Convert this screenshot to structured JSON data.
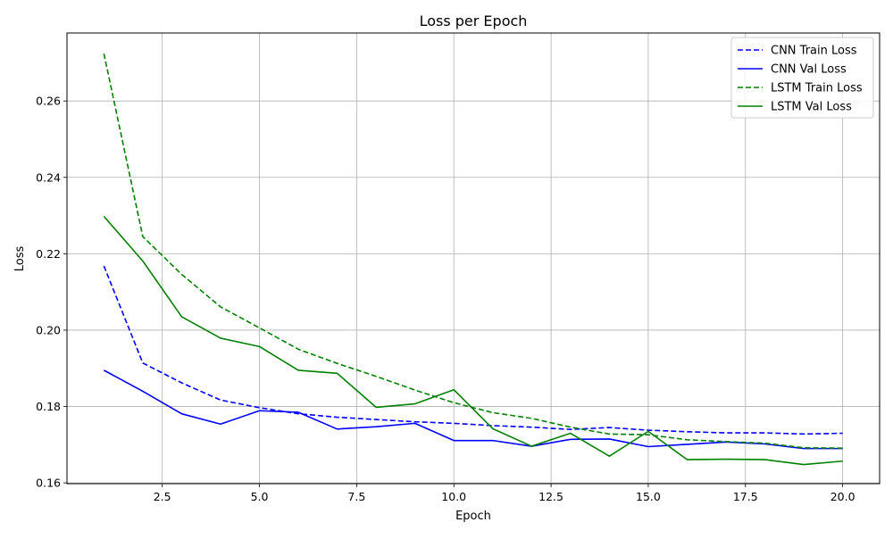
{
  "chart_data": {
    "type": "line",
    "title": "Loss per Epoch",
    "xlabel": "Epoch",
    "ylabel": "Loss",
    "xlim": [
      0.05,
      20.95
    ],
    "ylim": [
      0.1598,
      0.2778
    ],
    "xticks": [
      2.5,
      5.0,
      7.5,
      10.0,
      12.5,
      15.0,
      17.5,
      20.0
    ],
    "xtick_labels": [
      "2.5",
      "5.0",
      "7.5",
      "10.0",
      "12.5",
      "15.0",
      "17.5",
      "20.0"
    ],
    "yticks": [
      0.16,
      0.18,
      0.2,
      0.22,
      0.24,
      0.26
    ],
    "ytick_labels": [
      "0.16",
      "0.18",
      "0.20",
      "0.22",
      "0.24",
      "0.26"
    ],
    "grid": true,
    "legend_position": "top-right",
    "x": [
      1,
      2,
      3,
      4,
      5,
      6,
      7,
      8,
      9,
      10,
      11,
      12,
      13,
      14,
      15,
      16,
      17,
      18,
      19,
      20
    ],
    "series": [
      {
        "name": "CNN Train Loss",
        "color": "#0000ff",
        "dash": "dashed",
        "values": [
          0.2168,
          0.1914,
          0.1862,
          0.1817,
          0.1797,
          0.1781,
          0.1772,
          0.1766,
          0.176,
          0.1756,
          0.175,
          0.1746,
          0.174,
          0.1745,
          0.1738,
          0.1734,
          0.1731,
          0.1731,
          0.1728,
          0.173
        ]
      },
      {
        "name": "CNN Val Loss",
        "color": "#0000ff",
        "dash": "solid",
        "values": [
          0.1895,
          0.184,
          0.1781,
          0.1754,
          0.1789,
          0.1785,
          0.1741,
          0.1747,
          0.1756,
          0.1711,
          0.1711,
          0.1696,
          0.1714,
          0.1715,
          0.1695,
          0.1701,
          0.1707,
          0.1702,
          0.169,
          0.169
        ]
      },
      {
        "name": "LSTM Train Loss",
        "color": "#008000",
        "dash": "dashed",
        "values": [
          0.2724,
          0.2245,
          0.2146,
          0.2061,
          0.2006,
          0.195,
          0.1913,
          0.1879,
          0.1843,
          0.181,
          0.1784,
          0.1769,
          0.1746,
          0.1728,
          0.1726,
          0.1713,
          0.1708,
          0.1704,
          0.1692,
          0.1691
        ]
      },
      {
        "name": "LSTM Val Loss",
        "color": "#008000",
        "dash": "solid",
        "values": [
          0.2298,
          0.2181,
          0.2035,
          0.1979,
          0.1957,
          0.1895,
          0.1887,
          0.1798,
          0.1807,
          0.1844,
          0.1742,
          0.1696,
          0.173,
          0.167,
          0.1735,
          0.1661,
          0.1662,
          0.1661,
          0.1648,
          0.1657
        ]
      }
    ]
  }
}
